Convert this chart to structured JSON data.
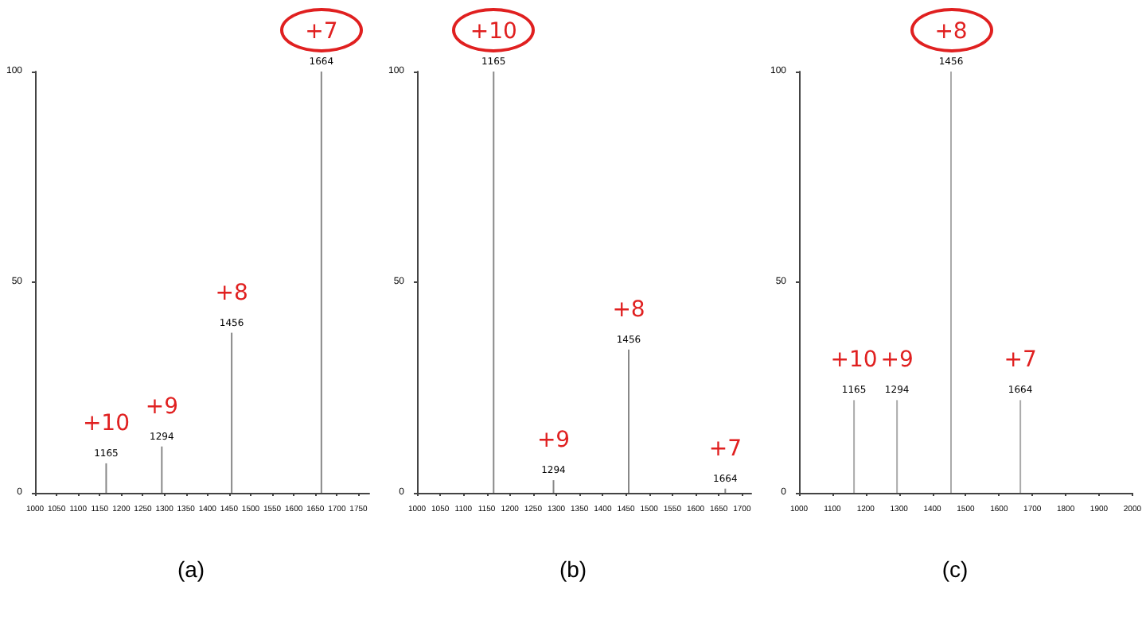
{
  "chart_data": [
    {
      "type": "bar",
      "title": "(a)",
      "x": [
        1165,
        1294,
        1456,
        1664
      ],
      "values": [
        7,
        11,
        38,
        100
      ],
      "color": "#888888",
      "xlim": [
        1000,
        1775
      ],
      "xticks": [
        1000,
        1050,
        1100,
        1150,
        1200,
        1250,
        1300,
        1350,
        1400,
        1450,
        1500,
        1550,
        1600,
        1650,
        1700,
        1750
      ],
      "ylim": [
        0,
        100
      ],
      "yticks": [
        0,
        50,
        100
      ],
      "annotations": [
        {
          "text": "1165",
          "x": 1165,
          "y": 7
        },
        {
          "text": "1294",
          "x": 1294,
          "y": 11
        },
        {
          "text": "1456",
          "x": 1456,
          "y": 38
        },
        {
          "text": "1664",
          "x": 1664,
          "y": 100
        },
        {
          "text": "+10",
          "x": 1165,
          "y": 7
        },
        {
          "text": "+9",
          "x": 1294,
          "y": 11
        },
        {
          "text": "+8",
          "x": 1456,
          "y": 38
        },
        {
          "text": "+7",
          "x": 1664,
          "y": 100
        }
      ]
    },
    {
      "type": "bar",
      "title": "(b)",
      "x": [
        1165,
        1294,
        1456,
        1664
      ],
      "values": [
        100,
        3,
        34,
        1
      ],
      "color": "#888888",
      "xlim": [
        1000,
        1720
      ],
      "xticks": [
        1000,
        1050,
        1100,
        1150,
        1200,
        1250,
        1300,
        1350,
        1400,
        1450,
        1500,
        1550,
        1600,
        1650,
        1700
      ],
      "ylim": [
        0,
        100
      ],
      "yticks": [
        0,
        50,
        100
      ],
      "annotations": [
        {
          "text": "1165",
          "x": 1165,
          "y": 100
        },
        {
          "text": "1294",
          "x": 1294,
          "y": 3
        },
        {
          "text": "1456",
          "x": 1456,
          "y": 34
        },
        {
          "text": "1664",
          "x": 1664,
          "y": 1
        },
        {
          "text": "+10",
          "x": 1165,
          "y": 100
        },
        {
          "text": "+9",
          "x": 1294,
          "y": 3
        },
        {
          "text": "+8",
          "x": 1456,
          "y": 34
        },
        {
          "text": "+7",
          "x": 1664,
          "y": 1
        }
      ]
    },
    {
      "type": "bar",
      "title": "(c)",
      "x": [
        1165,
        1294,
        1456,
        1664
      ],
      "values": [
        22,
        22,
        100,
        22
      ],
      "color": "#aaaaaa",
      "xlim": [
        1000,
        2000
      ],
      "xticks": [
        1000,
        1100,
        1200,
        1300,
        1400,
        1500,
        1600,
        1700,
        1800,
        1900,
        2000
      ],
      "ylim": [
        0,
        100
      ],
      "yticks": [
        0,
        50,
        100
      ],
      "annotations": [
        {
          "text": "1165",
          "x": 1165,
          "y": 22
        },
        {
          "text": "1294",
          "x": 1294,
          "y": 22
        },
        {
          "text": "1456",
          "x": 1456,
          "y": 100
        },
        {
          "text": "1664",
          "x": 1664,
          "y": 22
        },
        {
          "text": "+10",
          "x": 1165,
          "y": 22
        },
        {
          "text": "+9",
          "x": 1294,
          "y": 22
        },
        {
          "text": "+8",
          "x": 1456,
          "y": 100
        },
        {
          "text": "+7",
          "x": 1664,
          "y": 22
        }
      ]
    }
  ]
}
